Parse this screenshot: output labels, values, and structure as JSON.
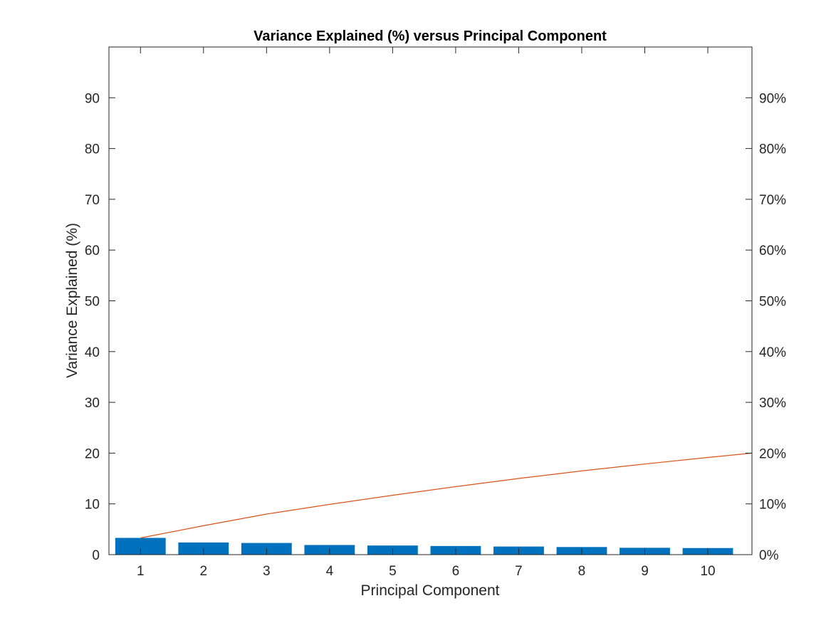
{
  "chart_data": {
    "type": "bar",
    "title": "Variance Explained (%) versus Principal Component",
    "xlabel": "Principal Component",
    "ylabel": "Variance Explained (%)",
    "categories": [
      "1",
      "2",
      "3",
      "4",
      "5",
      "6",
      "7",
      "8",
      "9",
      "10"
    ],
    "series": [
      {
        "type": "bar",
        "axis": "left",
        "values": [
          3.3,
          2.4,
          2.3,
          1.9,
          1.8,
          1.7,
          1.6,
          1.5,
          1.35,
          1.3
        ],
        "color": "#0072BD"
      },
      {
        "type": "line",
        "axis": "right",
        "values": [
          3.3,
          5.7,
          8.0,
          9.9,
          11.7,
          13.4,
          15.0,
          16.5,
          17.85,
          19.15,
          20.0
        ],
        "x": [
          1,
          2,
          3,
          4,
          5,
          6,
          7,
          8,
          9,
          10,
          10.7
        ],
        "color": "#D95319"
      }
    ],
    "ylim": [
      0,
      100
    ],
    "xlim": [
      0.5,
      10.7
    ],
    "yticks": [
      0,
      10,
      20,
      30,
      40,
      50,
      60,
      70,
      80,
      90
    ],
    "ytick_labels_left": [
      "0",
      "10",
      "20",
      "30",
      "40",
      "50",
      "60",
      "70",
      "80",
      "90"
    ],
    "ytick_labels_right": [
      "0%",
      "10%",
      "20%",
      "30%",
      "40%",
      "50%",
      "60%",
      "70%",
      "80%",
      "90%"
    ],
    "grid": false,
    "legend": "none"
  }
}
